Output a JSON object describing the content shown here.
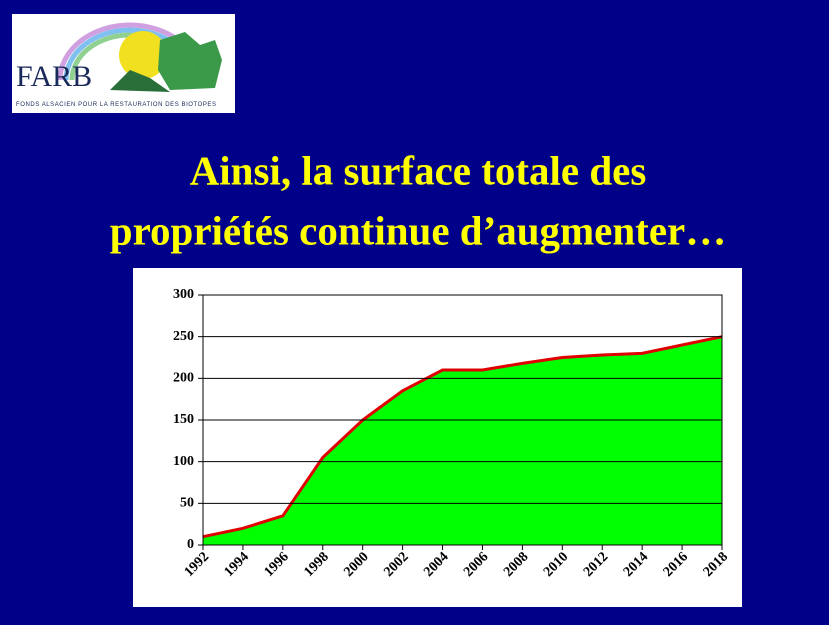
{
  "logo": {
    "name": "FARB",
    "subtitle": "FONDS ALSACIEN POUR LA RESTAURATION DES BIOTOPES"
  },
  "title_lines": [
    "Ainsi, la surface totale des",
    "propriétés continue d’augmenter…"
  ],
  "chart_data": {
    "type": "area",
    "x": [
      1992,
      1994,
      1996,
      1998,
      2000,
      2002,
      2004,
      2006,
      2008,
      2010,
      2012,
      2014,
      2016,
      2018
    ],
    "values": [
      10,
      20,
      35,
      105,
      150,
      185,
      210,
      210,
      218,
      225,
      228,
      230,
      240,
      250
    ],
    "color": "#00ff00",
    "line_color": "#e00000",
    "xlim": [
      1992,
      2018
    ],
    "xticks": [
      1992,
      1994,
      1996,
      1998,
      2000,
      2002,
      2004,
      2006,
      2008,
      2010,
      2012,
      2014,
      2016,
      2018
    ],
    "ylim": [
      0,
      300
    ],
    "yticks": [
      0,
      50,
      100,
      150,
      200,
      250,
      300
    ],
    "grid": true
  }
}
